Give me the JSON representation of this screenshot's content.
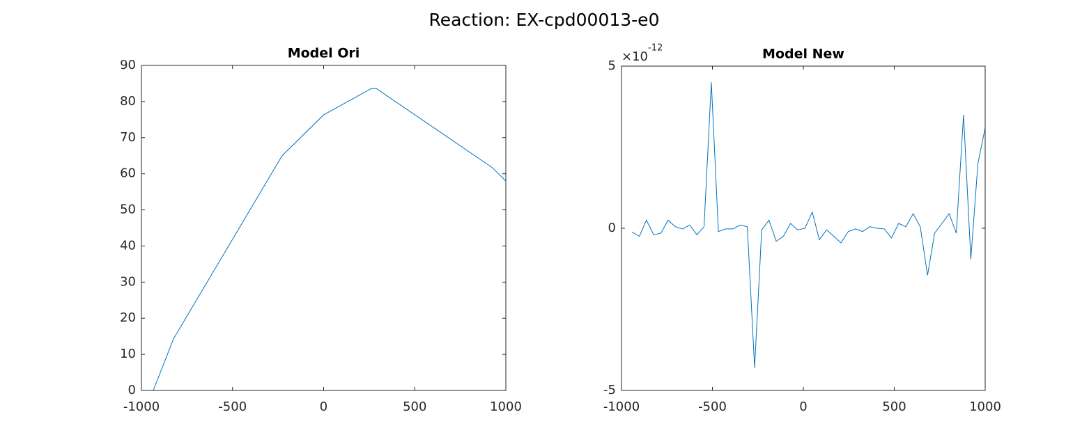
{
  "title": "Reaction: EX-cpd00013-e0",
  "chart_data": [
    {
      "type": "line",
      "title": "Model Ori",
      "x": [
        -935,
        -824,
        -228,
        0,
        262,
        289,
        923,
        1000
      ],
      "values": [
        0,
        14.3,
        65,
        76.3,
        83.6,
        83.6,
        61.8,
        58
      ],
      "color": "#0072bd",
      "xlim": [
        -1000,
        1000
      ],
      "xticks": [
        -1000,
        -500,
        0,
        500,
        1000
      ],
      "ylim": [
        0,
        90
      ],
      "yticks": [
        0,
        10,
        20,
        30,
        40,
        50,
        60,
        70,
        80,
        90
      ]
    },
    {
      "type": "line",
      "title": "Model New",
      "x": [
        -942,
        -902,
        -863,
        -823,
        -783,
        -744,
        -704,
        -665,
        -625,
        -585,
        -546,
        -506,
        -467,
        -427,
        -387,
        -348,
        -308,
        -268,
        -229,
        -189,
        -149,
        -110,
        -70,
        -31,
        9,
        49,
        88,
        128,
        168,
        207,
        247,
        287,
        326,
        366,
        405,
        445,
        485,
        524,
        564,
        604,
        643,
        683,
        722,
        762,
        802,
        841,
        881,
        921,
        960,
        1000
      ],
      "values": [
        -1.1e-13,
        -2.5e-13,
        2.5e-13,
        -2e-13,
        -1.5e-13,
        2.5e-13,
        5e-14,
        -2e-14,
        1e-13,
        -2e-13,
        5e-14,
        4.5e-12,
        -1e-13,
        -2e-14,
        -2e-14,
        1e-13,
        5e-14,
        -4.3e-12,
        -5e-14,
        2.5e-13,
        -4e-13,
        -2.5e-13,
        1.5e-13,
        -5e-14,
        0,
        5e-13,
        -3.5e-13,
        -5e-14,
        -2.5e-13,
        -4.5e-13,
        -1e-13,
        -2e-14,
        -1e-13,
        5e-14,
        0,
        -2e-14,
        -3e-13,
        1.5e-13,
        5e-14,
        4.5e-13,
        5e-14,
        -1.45e-12,
        -1.5e-13,
        1.5e-13,
        4.5e-13,
        -1.5e-13,
        3.5e-12,
        -9.5e-13,
        2e-12,
        3.1e-12
      ],
      "color": "#0072bd",
      "xlim": [
        -1000,
        1000
      ],
      "xticks": [
        -1000,
        -500,
        0,
        500,
        1000
      ],
      "ylim": [
        -5e-12,
        5e-12
      ],
      "yticks": [
        {
          "value": -5e-12,
          "label": "-5"
        },
        {
          "value": 0,
          "label": "0"
        },
        {
          "value": 5e-12,
          "label": "5"
        }
      ],
      "y_exponent": {
        "base": "×10",
        "power": "-12"
      }
    }
  ]
}
